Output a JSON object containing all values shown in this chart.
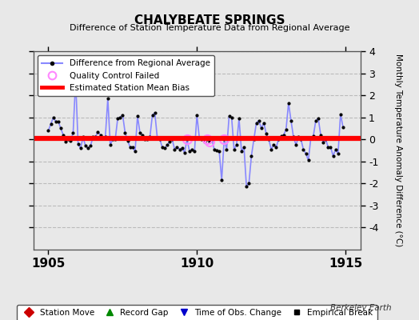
{
  "title": "CHALYBEATE SPRINGS",
  "subtitle": "Difference of Station Temperature Data from Regional Average",
  "ylabel_right": "Monthly Temperature Anomaly Difference (°C)",
  "bias_value": 0.05,
  "ylim": [
    -5,
    4
  ],
  "xlim": [
    1904.5,
    1915.5
  ],
  "xticks": [
    1905,
    1910,
    1915
  ],
  "yticks": [
    -4,
    -3,
    -2,
    -1,
    0,
    1,
    2,
    3,
    4
  ],
  "background_color": "#e8e8e8",
  "plot_bg_color": "#e8e8e8",
  "grid_color": "#c8c8c8",
  "line_color": "#8888ff",
  "marker_color": "#000000",
  "bias_color": "#ff0000",
  "qc_color": "#ff88ff",
  "watermark": "Berkeley Earth",
  "times": [
    1905.0,
    1905.083,
    1905.167,
    1905.25,
    1905.333,
    1905.417,
    1905.5,
    1905.583,
    1905.667,
    1905.75,
    1905.833,
    1905.917,
    1906.0,
    1906.083,
    1906.167,
    1906.25,
    1906.333,
    1906.417,
    1906.5,
    1906.583,
    1906.667,
    1906.75,
    1906.833,
    1906.917,
    1907.0,
    1907.083,
    1907.167,
    1907.25,
    1907.333,
    1907.417,
    1907.5,
    1907.583,
    1907.667,
    1907.75,
    1907.833,
    1907.917,
    1908.0,
    1908.083,
    1908.167,
    1908.25,
    1908.333,
    1908.417,
    1908.5,
    1908.583,
    1908.667,
    1908.75,
    1908.833,
    1908.917,
    1909.0,
    1909.083,
    1909.167,
    1909.25,
    1909.333,
    1909.417,
    1909.5,
    1909.583,
    1909.667,
    1909.75,
    1909.833,
    1909.917,
    1910.0,
    1910.083,
    1910.167,
    1910.25,
    1910.333,
    1910.417,
    1910.5,
    1910.583,
    1910.667,
    1910.75,
    1910.833,
    1910.917,
    1911.0,
    1911.083,
    1911.167,
    1911.25,
    1911.333,
    1911.417,
    1911.5,
    1911.583,
    1911.667,
    1911.75,
    1911.833,
    1911.917,
    1912.0,
    1912.083,
    1912.167,
    1912.25,
    1912.333,
    1912.417,
    1912.5,
    1912.583,
    1912.667,
    1912.75,
    1912.833,
    1912.917,
    1913.0,
    1913.083,
    1913.167,
    1913.25,
    1913.333,
    1913.417,
    1913.5,
    1913.583,
    1913.667,
    1913.75,
    1913.833,
    1913.917,
    1914.0,
    1914.083,
    1914.167,
    1914.25,
    1914.333,
    1914.417,
    1914.5,
    1914.583,
    1914.667,
    1914.75,
    1914.833,
    1914.917
  ],
  "values": [
    0.4,
    0.7,
    1.0,
    0.8,
    0.8,
    0.5,
    0.2,
    -0.1,
    0.0,
    -0.05,
    0.3,
    2.7,
    -0.2,
    -0.4,
    0.1,
    -0.3,
    -0.4,
    -0.3,
    0.1,
    0.1,
    0.35,
    0.2,
    0.05,
    0.1,
    1.85,
    -0.25,
    0.0,
    0.0,
    0.95,
    1.0,
    1.1,
    0.3,
    -0.05,
    -0.35,
    -0.35,
    -0.55,
    1.05,
    0.3,
    0.2,
    0.0,
    0.0,
    0.1,
    1.1,
    1.2,
    0.05,
    0.0,
    -0.35,
    -0.4,
    -0.25,
    -0.1,
    0.0,
    -0.45,
    -0.35,
    -0.45,
    -0.4,
    -0.6,
    0.0,
    -0.55,
    -0.45,
    -0.55,
    1.1,
    0.05,
    0.0,
    -0.1,
    0.0,
    -0.1,
    0.0,
    -0.45,
    -0.5,
    -0.55,
    -1.85,
    0.0,
    -0.45,
    1.05,
    1.0,
    -0.45,
    -0.25,
    0.95,
    -0.55,
    -0.35,
    -2.15,
    -2.0,
    -0.75,
    0.0,
    0.75,
    0.85,
    0.5,
    0.75,
    0.25,
    0.0,
    -0.45,
    -0.25,
    -0.35,
    0.0,
    0.15,
    0.2,
    0.45,
    1.65,
    0.85,
    0.1,
    -0.25,
    0.1,
    0.0,
    -0.45,
    -0.65,
    -0.95,
    0.05,
    0.15,
    0.85,
    0.95,
    0.2,
    -0.15,
    0.0,
    -0.35,
    -0.35,
    -0.75,
    -0.45,
    -0.65,
    1.15,
    0.55
  ],
  "qc_failed_indices": [
    56,
    64,
    65,
    71
  ],
  "bottom_legend": [
    {
      "label": "Station Move",
      "color": "#cc0000",
      "marker": "D",
      "ms": 6
    },
    {
      "label": "Record Gap",
      "color": "#008800",
      "marker": "^",
      "ms": 6
    },
    {
      "label": "Time of Obs. Change",
      "color": "#0000cc",
      "marker": "v",
      "ms": 6
    },
    {
      "label": "Empirical Break",
      "color": "#000000",
      "marker": "s",
      "ms": 5
    }
  ]
}
